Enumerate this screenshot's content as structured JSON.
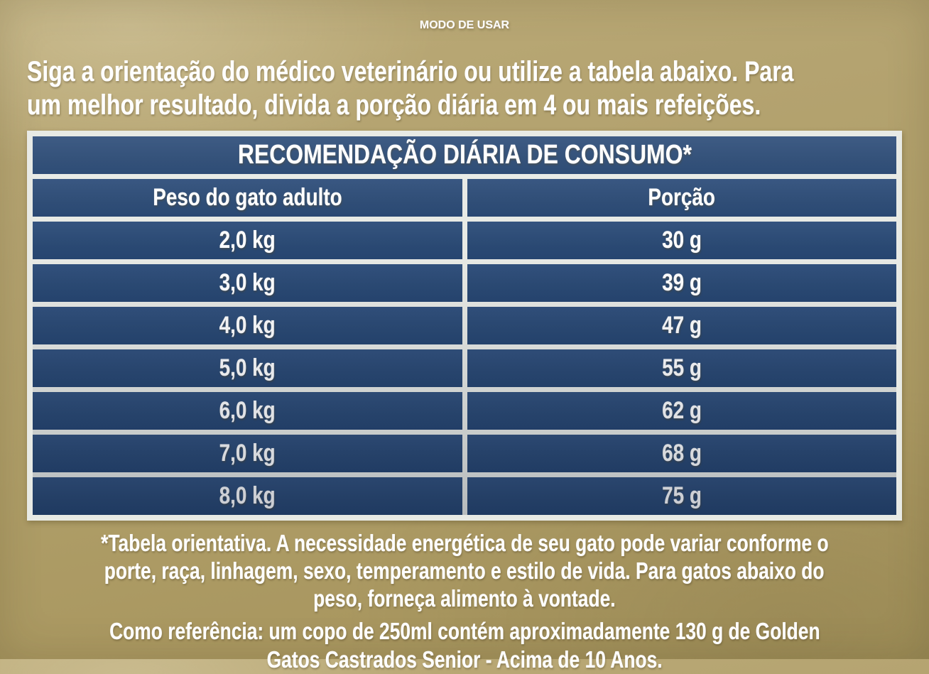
{
  "header": {
    "title": "MODO DE USAR",
    "intro_lines": [
      "Siga a orientação do médico veterinário ou utilize a tabela abaixo. Para",
      "um melhor resultado, divida a porção diária em 4 ou mais refeições."
    ]
  },
  "table": {
    "title": "RECOMENDAÇÃO DIÁRIA DE CONSUMO*",
    "columns": [
      "Peso do gato adulto",
      "Porção"
    ],
    "rows": [
      {
        "weight": "2,0 kg",
        "portion": "30 g"
      },
      {
        "weight": "3,0 kg",
        "portion": "39 g"
      },
      {
        "weight": "4,0 kg",
        "portion": "47 g"
      },
      {
        "weight": "5,0 kg",
        "portion": "55 g"
      },
      {
        "weight": "6,0 kg",
        "portion": "62 g"
      },
      {
        "weight": "7,0 kg",
        "portion": "68 g"
      },
      {
        "weight": "8,0 kg",
        "portion": "75 g"
      }
    ]
  },
  "footnotes": {
    "orientative_lines": [
      "*Tabela orientativa. A necessidade energética de seu gato pode variar conforme o",
      "porte, raça, linhagem, sexo, temperamento e estilo de vida. Para gatos abaixo do",
      "peso, forneça alimento à vontade."
    ],
    "reference_lines": [
      "Como referência: um copo de 250ml contém aproximadamente 130 g de Golden",
      "Gatos Castrados Senior - Acima de 10 Anos."
    ]
  },
  "colors": {
    "background_gold": "#af9e68",
    "table_navy": "#2b4a74",
    "separator_white": "#e8eae5",
    "text_white": "#ffffff"
  },
  "chart_data": {
    "type": "table",
    "title": "RECOMENDAÇÃO DIÁRIA DE CONSUMO*",
    "columns": [
      "Peso do gato adulto",
      "Porção"
    ],
    "rows": [
      [
        "2,0 kg",
        "30 g"
      ],
      [
        "3,0 kg",
        "39 g"
      ],
      [
        "4,0 kg",
        "47 g"
      ],
      [
        "5,0 kg",
        "55 g"
      ],
      [
        "6,0 kg",
        "62 g"
      ],
      [
        "7,0 kg",
        "68 g"
      ],
      [
        "8,0 kg",
        "75 g"
      ]
    ],
    "weights_kg": [
      2.0,
      3.0,
      4.0,
      5.0,
      6.0,
      7.0,
      8.0
    ],
    "portions_g": [
      30,
      39,
      47,
      55,
      62,
      68,
      75
    ]
  }
}
